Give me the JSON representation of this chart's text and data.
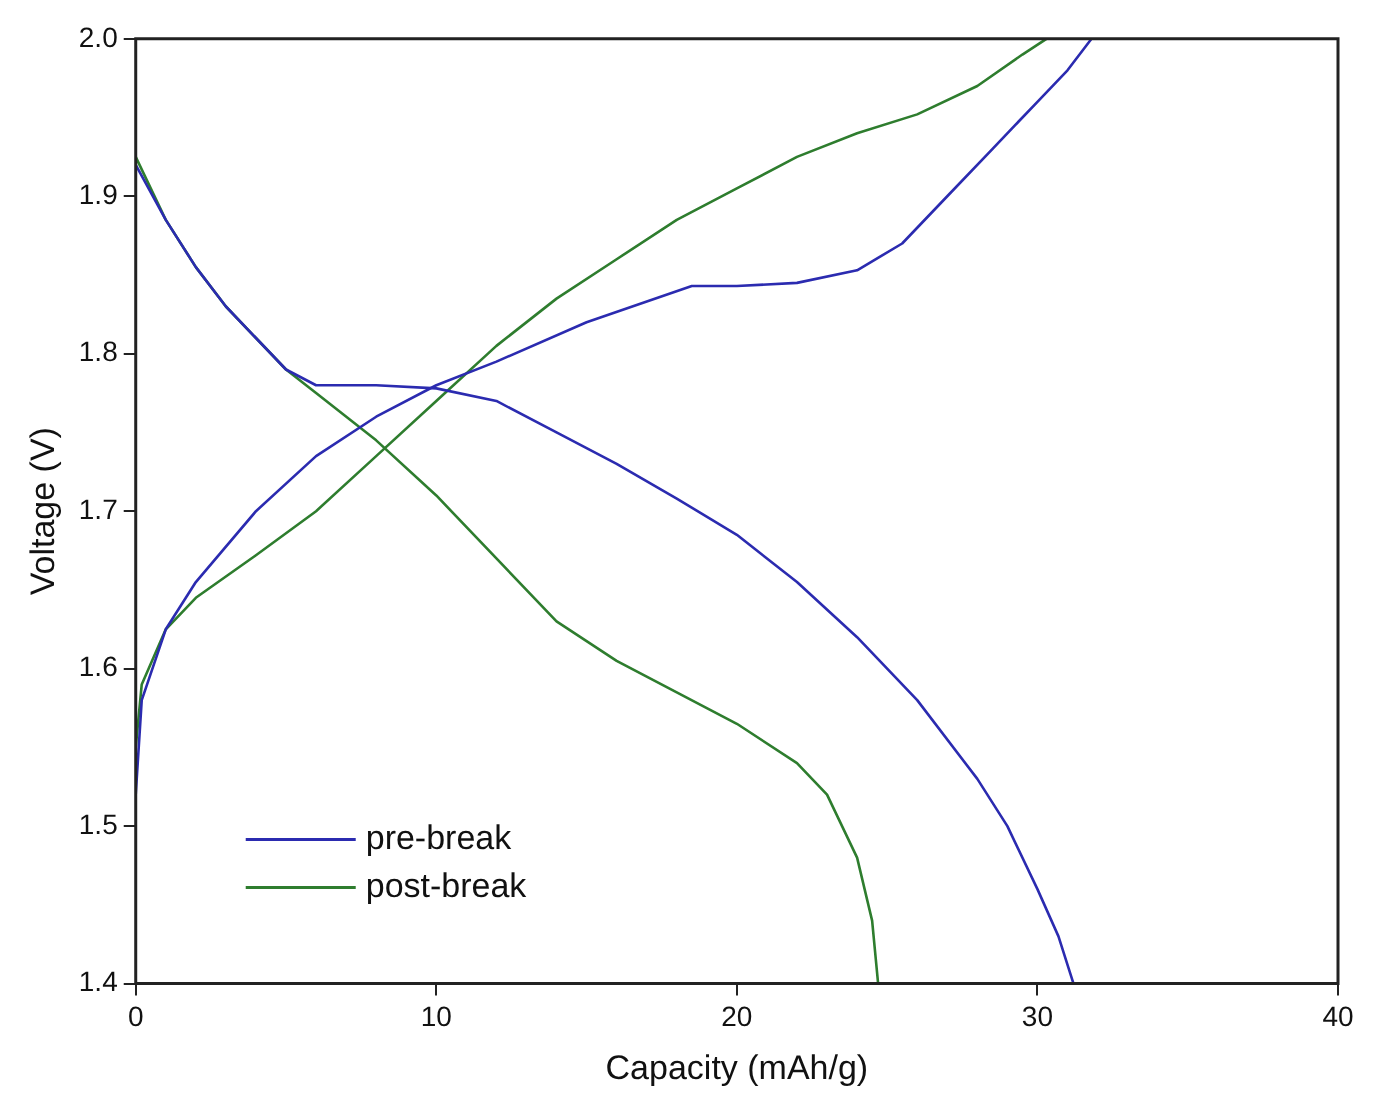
{
  "chart_data": {
    "type": "line",
    "xlabel": "Capacity (mAh/g)",
    "ylabel": "Voltage (V)",
    "xlim": [
      0,
      40
    ],
    "xticks": [
      0,
      10,
      20,
      30,
      40
    ],
    "ylim": [
      1.4,
      2.0
    ],
    "yticks": [
      1.4,
      1.5,
      1.6,
      1.7,
      1.8,
      1.9,
      {
        "value": 2.0,
        "label": "2.0"
      }
    ],
    "grid": false,
    "legend": "bottom left",
    "marker": "none",
    "line_style": "solid",
    "series": [
      {
        "name": "pre-break",
        "color": "#2b2bb0",
        "x": [
          0,
          1,
          2,
          3,
          4,
          5,
          6,
          8,
          10,
          12,
          14,
          16,
          18,
          20,
          22,
          24,
          26,
          28,
          29,
          30,
          30.7,
          31.2
        ],
        "values": [
          1.92,
          1.885,
          1.855,
          1.83,
          1.81,
          1.79,
          1.78,
          1.78,
          1.778,
          1.77,
          1.75,
          1.73,
          1.708,
          1.685,
          1.655,
          1.62,
          1.58,
          1.53,
          1.5,
          1.46,
          1.43,
          1.4
        ]
      },
      {
        "color": "#2b2bb0",
        "x": [
          0,
          0.2,
          1,
          2,
          4,
          6,
          8,
          10,
          12,
          15,
          18.5,
          20,
          22,
          24,
          25.5,
          27,
          28.5,
          30,
          31,
          31.8
        ],
        "values": [
          1.52,
          1.58,
          1.625,
          1.655,
          1.7,
          1.735,
          1.76,
          1.78,
          1.795,
          1.82,
          1.843,
          1.843,
          1.845,
          1.853,
          1.87,
          1.9,
          1.93,
          1.96,
          1.98,
          2.0
        ]
      },
      {
        "name": "post-break",
        "color": "#2e7d2e",
        "x": [
          0,
          1,
          2,
          3,
          4,
          5,
          6,
          8,
          10,
          12,
          14,
          16,
          18,
          20,
          22,
          23,
          24,
          24.5,
          24.7
        ],
        "values": [
          1.925,
          1.885,
          1.855,
          1.83,
          1.81,
          1.79,
          1.775,
          1.745,
          1.71,
          1.67,
          1.63,
          1.605,
          1.585,
          1.565,
          1.54,
          1.52,
          1.48,
          1.44,
          1.4
        ]
      },
      {
        "color": "#2e7d2e",
        "x": [
          0,
          0.2,
          1,
          2,
          4,
          6,
          8,
          10,
          12,
          14,
          16,
          18,
          20,
          22,
          24,
          26,
          28,
          29.5,
          30.3
        ],
        "values": [
          1.55,
          1.59,
          1.625,
          1.645,
          1.672,
          1.7,
          1.735,
          1.77,
          1.805,
          1.835,
          1.86,
          1.885,
          1.905,
          1.925,
          1.94,
          1.952,
          1.97,
          1.99,
          2.0
        ]
      }
    ]
  }
}
